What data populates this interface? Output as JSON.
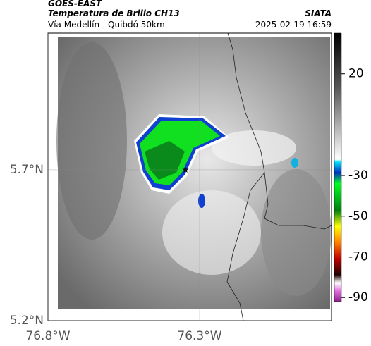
{
  "header": {
    "source": "GOES-EAST",
    "title": "Temperatura de Brillo CH13",
    "subtitle": "Vía Medellín - Quibdó 50km",
    "credit": "SIATA",
    "timestamp": "2025-02-19 16:59"
  },
  "map": {
    "latlim": [
      5.2,
      6.153
    ],
    "lonlim": [
      -76.8,
      -75.865
    ],
    "lat_ticks": [
      {
        "value": 5.7,
        "label": "5.7°N"
      },
      {
        "value": 5.2,
        "label": "5.2°N"
      }
    ],
    "lon_ticks": [
      {
        "value": -76.8,
        "label": "76.8°W"
      },
      {
        "value": -76.3,
        "label": "76.3°W"
      }
    ]
  },
  "colorbar": {
    "lim": [
      40,
      -92
    ],
    "ticks": [
      20,
      -30,
      -50,
      -70,
      -90
    ]
  }
}
